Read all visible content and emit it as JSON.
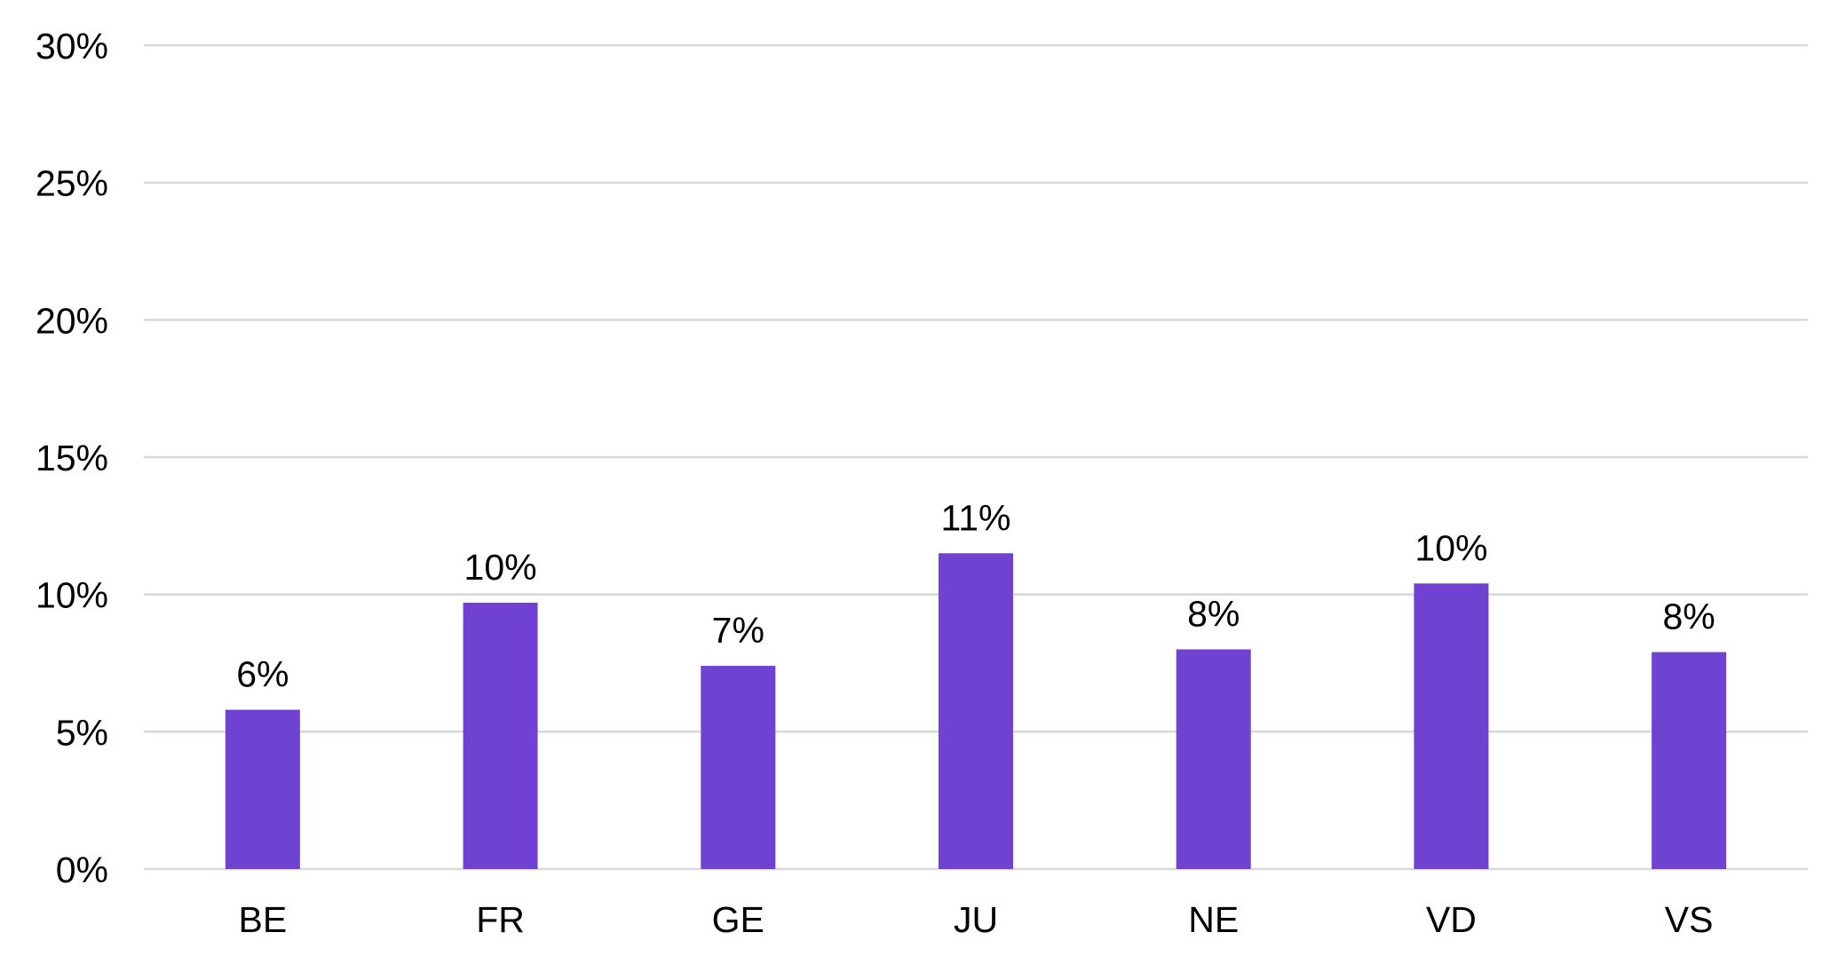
{
  "chart_data": {
    "type": "bar",
    "title": "",
    "xlabel": "",
    "ylabel": "",
    "categories": [
      "BE",
      "FR",
      "GE",
      "JU",
      "NE",
      "VD",
      "VS"
    ],
    "values": [
      5.8,
      9.7,
      7.4,
      11.5,
      8.0,
      10.4,
      7.9
    ],
    "data_labels": [
      "6%",
      "10%",
      "7%",
      "11%",
      "8%",
      "10%",
      "8%"
    ],
    "ylim": [
      0,
      30
    ],
    "yticks": [
      0,
      5,
      10,
      15,
      20,
      25,
      30
    ],
    "ytick_labels": [
      "0%",
      "5%",
      "10%",
      "15%",
      "20%",
      "25%",
      "30%"
    ],
    "grid": true,
    "legend": "none",
    "colors": {
      "bar": "#6f42d1",
      "grid": "#d9d9d9",
      "text": "#000000"
    }
  }
}
